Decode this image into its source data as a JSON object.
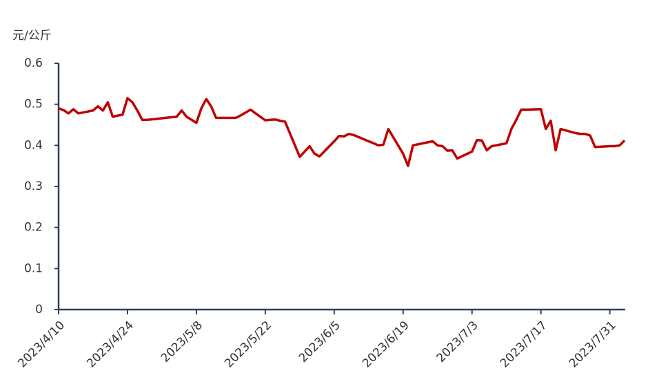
{
  "chart_data": {
    "type": "line",
    "y_label": "元/公斤",
    "x": [
      "2023/4/10",
      "2023/4/11",
      "2023/4/12",
      "2023/4/13",
      "2023/4/14",
      "2023/4/17",
      "2023/4/18",
      "2023/4/19",
      "2023/4/20",
      "2023/4/21",
      "2023/4/23",
      "2023/4/24",
      "2023/4/25",
      "2023/4/26",
      "2023/4/27",
      "2023/4/28",
      "2023/5/4",
      "2023/5/5",
      "2023/5/6",
      "2023/5/8",
      "2023/5/9",
      "2023/5/10",
      "2023/5/11",
      "2023/5/12",
      "2023/5/15",
      "2023/5/16",
      "2023/5/17",
      "2023/5/18",
      "2023/5/19",
      "2023/5/22",
      "2023/5/23",
      "2023/5/24",
      "2023/5/25",
      "2023/5/26",
      "2023/5/29",
      "2023/5/30",
      "2023/5/31",
      "2023/6/1",
      "2023/6/2",
      "2023/6/5",
      "2023/6/6",
      "2023/6/7",
      "2023/6/8",
      "2023/6/9",
      "2023/6/12",
      "2023/6/13",
      "2023/6/14",
      "2023/6/15",
      "2023/6/16",
      "2023/6/19",
      "2023/6/20",
      "2023/6/21",
      "2023/6/25",
      "2023/6/26",
      "2023/6/27",
      "2023/6/28",
      "2023/6/29",
      "2023/6/30",
      "2023/7/3",
      "2023/7/4",
      "2023/7/5",
      "2023/7/6",
      "2023/7/7",
      "2023/7/10",
      "2023/7/11",
      "2023/7/12",
      "2023/7/13",
      "2023/7/14",
      "2023/7/17",
      "2023/7/18",
      "2023/7/19",
      "2023/7/20",
      "2023/7/21",
      "2023/7/24",
      "2023/7/25",
      "2023/7/26",
      "2023/7/27",
      "2023/7/28",
      "2023/7/31",
      "2023/8/1",
      "2023/8/2",
      "2023/8/3"
    ],
    "series": [
      {
        "color": "#c00000",
        "values": [
          0.49,
          0.486,
          0.478,
          0.488,
          0.478,
          0.485,
          0.495,
          0.485,
          0.505,
          0.47,
          0.475,
          0.515,
          0.505,
          0.485,
          0.462,
          0.462,
          0.47,
          0.485,
          0.47,
          0.455,
          0.49,
          0.513,
          0.495,
          0.467,
          0.467,
          0.467,
          0.473,
          0.48,
          0.487,
          0.461,
          0.462,
          0.463,
          0.46,
          0.458,
          0.372,
          0.385,
          0.398,
          0.38,
          0.373,
          0.41,
          0.423,
          0.422,
          0.428,
          0.425,
          0.41,
          0.405,
          0.4,
          0.402,
          0.44,
          0.38,
          0.35,
          0.4,
          0.41,
          0.4,
          0.398,
          0.387,
          0.388,
          0.368,
          0.385,
          0.413,
          0.412,
          0.388,
          0.398,
          0.405,
          0.44,
          0.462,
          0.487,
          0.487,
          0.488,
          0.44,
          0.46,
          0.388,
          0.44,
          0.43,
          0.428,
          0.428,
          0.424,
          0.396,
          0.398,
          0.398,
          0.4,
          0.412
        ]
      }
    ],
    "xlim": [
      "2023/4/10",
      "2023/8/3"
    ],
    "xticks": [
      "2023/4/10",
      "2023/4/24",
      "2023/5/8",
      "2023/5/22",
      "2023/6/5",
      "2023/6/19",
      "2023/7/3",
      "2023/7/17",
      "2023/7/31"
    ],
    "ylim": [
      0,
      0.6
    ],
    "yticks": [
      0,
      0.1,
      0.2,
      0.3,
      0.4,
      0.5,
      0.6
    ],
    "grid": false
  }
}
